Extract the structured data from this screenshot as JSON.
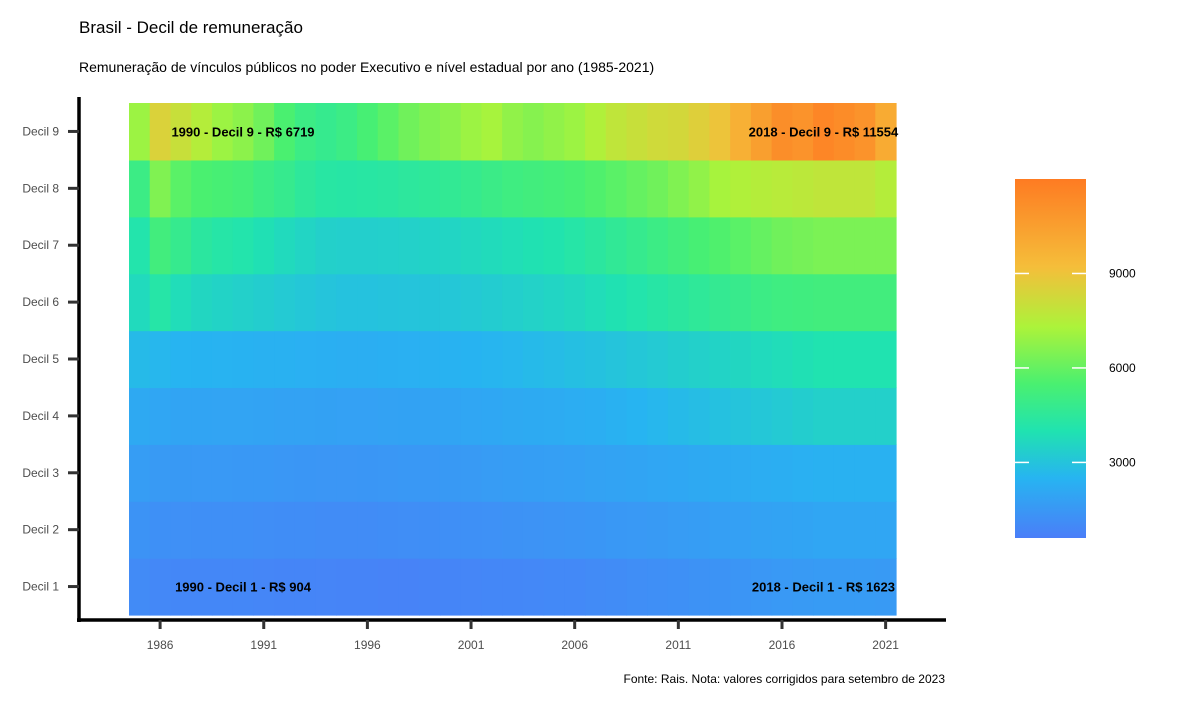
{
  "title": "Brasil - Decil de remuneração",
  "subtitle": "Remuneração de vínculos públicos no poder Executivo e nível estadual por ano (1985-2021)",
  "caption": "Fonte: Rais. Nota: valores corrigidos para setembro de 2023",
  "chart_data": {
    "type": "heatmap",
    "title": "Brasil - Decil de remuneração",
    "subtitle": "Remuneração de vínculos públicos no poder Executivo e nível estadual por ano (1985-2021)",
    "x_tick_labels": [
      "1986",
      "1991",
      "1996",
      "2001",
      "2006",
      "2011",
      "2016",
      "2021"
    ],
    "y_categories": [
      "Decil 1",
      "Decil 2",
      "Decil 3",
      "Decil 4",
      "Decil 5",
      "Decil 6",
      "Decil 7",
      "Decil 8",
      "Decil 9"
    ],
    "years": [
      1985,
      1986,
      1987,
      1988,
      1989,
      1990,
      1991,
      1992,
      1993,
      1994,
      1995,
      1996,
      1997,
      1998,
      1999,
      2000,
      2001,
      2002,
      2003,
      2004,
      2005,
      2006,
      2007,
      2008,
      2009,
      2010,
      2011,
      2012,
      2013,
      2014,
      2015,
      2016,
      2017,
      2018,
      2019,
      2020,
      2021
    ],
    "values": [
      [
        1050,
        950,
        920,
        920,
        910,
        904,
        880,
        860,
        850,
        830,
        820,
        800,
        780,
        790,
        820,
        850,
        880,
        900,
        920,
        950,
        980,
        1000,
        1050,
        1100,
        1150,
        1200,
        1250,
        1300,
        1350,
        1420,
        1480,
        1550,
        1600,
        1623,
        1620,
        1610,
        1600
      ],
      [
        1350,
        1250,
        1220,
        1210,
        1200,
        1190,
        1160,
        1140,
        1120,
        1100,
        1100,
        1110,
        1130,
        1150,
        1180,
        1210,
        1240,
        1270,
        1300,
        1330,
        1360,
        1400,
        1450,
        1500,
        1550,
        1600,
        1650,
        1700,
        1750,
        1800,
        1850,
        1900,
        1950,
        2000,
        2000,
        2000,
        2000
      ],
      [
        1700,
        1600,
        1560,
        1550,
        1540,
        1530,
        1500,
        1480,
        1460,
        1440,
        1440,
        1450,
        1470,
        1500,
        1530,
        1560,
        1600,
        1640,
        1680,
        1720,
        1760,
        1800,
        1850,
        1900,
        1950,
        2000,
        2050,
        2100,
        2150,
        2200,
        2250,
        2300,
        2350,
        2400,
        2400,
        2400,
        2400
      ],
      [
        2100,
        2000,
        1950,
        1940,
        1930,
        1920,
        1900,
        1870,
        1850,
        1830,
        1820,
        1820,
        1850,
        1880,
        1910,
        1950,
        2000,
        2050,
        2100,
        2150,
        2200,
        2250,
        2300,
        2400,
        2500,
        2600,
        2700,
        2800,
        2900,
        3000,
        3100,
        3200,
        3300,
        3400,
        3400,
        3400,
        3400
      ],
      [
        2700,
        2600,
        2500,
        2480,
        2460,
        2440,
        2400,
        2380,
        2350,
        2320,
        2300,
        2300,
        2320,
        2350,
        2380,
        2420,
        2480,
        2540,
        2600,
        2680,
        2760,
        2840,
        2920,
        3000,
        3100,
        3200,
        3300,
        3400,
        3500,
        3600,
        3700,
        3800,
        3900,
        4000,
        4000,
        4000,
        4000
      ],
      [
        3700,
        4200,
        3800,
        3600,
        3500,
        3400,
        3300,
        3200,
        3100,
        3000,
        2950,
        2950,
        2980,
        3000,
        3050,
        3100,
        3180,
        3260,
        3350,
        3450,
        3550,
        3650,
        3800,
        3950,
        4100,
        4250,
        4400,
        4550,
        4700,
        4850,
        5000,
        5100,
        5150,
        5200,
        5200,
        5200,
        5200
      ],
      [
        4100,
        5200,
        4800,
        4400,
        4200,
        4100,
        3900,
        3700,
        3550,
        3400,
        3350,
        3350,
        3380,
        3420,
        3480,
        3550,
        3650,
        3750,
        3850,
        3950,
        4050,
        4200,
        4400,
        4600,
        4800,
        5000,
        5200,
        5400,
        5600,
        5800,
        6000,
        6200,
        6300,
        6400,
        6400,
        6400,
        6400
      ],
      [
        5000,
        6500,
        5800,
        5500,
        5400,
        5300,
        5000,
        4800,
        4500,
        4300,
        4250,
        4300,
        4350,
        4450,
        4550,
        4650,
        4800,
        4950,
        5100,
        5200,
        5300,
        5400,
        5600,
        5800,
        6000,
        6200,
        6500,
        6800,
        7200,
        7400,
        7500,
        7600,
        7700,
        7800,
        7800,
        7800,
        7500
      ],
      [
        7000,
        8500,
        8000,
        7500,
        7000,
        6719,
        6200,
        5500,
        5000,
        4800,
        5000,
        5400,
        5800,
        6200,
        6500,
        6700,
        7000,
        7200,
        6800,
        6600,
        6800,
        7000,
        7400,
        7800,
        8000,
        8200,
        8300,
        8600,
        9000,
        9800,
        10500,
        11200,
        11000,
        11554,
        11300,
        11000,
        10000
      ]
    ],
    "color_scale": {
      "stops": [
        {
          "value": 600,
          "color": "#4a7ef8"
        },
        {
          "value": 2500,
          "color": "#27b4f1"
        },
        {
          "value": 4000,
          "color": "#20e3b0"
        },
        {
          "value": 5500,
          "color": "#4af070"
        },
        {
          "value": 7300,
          "color": "#acf33a"
        },
        {
          "value": 9200,
          "color": "#f5be3a"
        },
        {
          "value": 12000,
          "color": "#fe7b22"
        }
      ],
      "domain": [
        600,
        12000
      ]
    },
    "legend": {
      "position": "right",
      "tick_values": [
        3000,
        6000,
        9000
      ],
      "tick_labels": [
        "3000",
        "6000",
        "9000"
      ]
    },
    "annotations": [
      {
        "year": 1990,
        "decile_index": 8,
        "text": "1990 - Decil 9 - R$ 6719"
      },
      {
        "year": 2018,
        "decile_index": 8,
        "text": "2018 - Decil 9 - R$ 11554"
      },
      {
        "year": 1990,
        "decile_index": 0,
        "text": "1990 - Decil 1 - R$ 904"
      },
      {
        "year": 2018,
        "decile_index": 0,
        "text": "2018 - Decil 1 - R$ 1623"
      }
    ]
  }
}
